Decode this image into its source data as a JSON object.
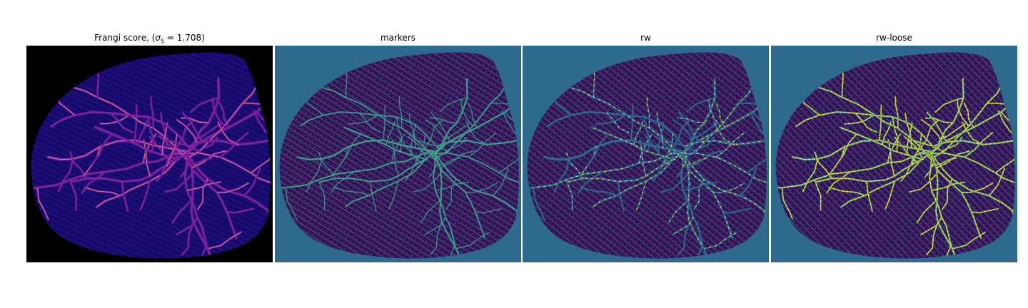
{
  "figure": {
    "panels": [
      {
        "title_prefix": "Frangi score, (",
        "title_sigma": "σ",
        "title_sub": "5",
        "title_suffix": " = 1.708)",
        "colors": {
          "background": "#000000",
          "tissue": "#150a6a",
          "vessel": "#7a1f9e",
          "vessel_hot": "#f0907a"
        }
      },
      {
        "title": "markers",
        "colors": {
          "background": "#2e6a8e",
          "tissue": "#3b0f55",
          "vessel": "#3e9b8a"
        }
      },
      {
        "title": "rw",
        "colors": {
          "background": "#2e6a8e",
          "tissue": "#3b0f55",
          "vessel": "#2e6a8e",
          "highlight": "#fde725"
        }
      },
      {
        "title": "rw-loose",
        "colors": {
          "background": "#2e6a8e",
          "tissue": "#3b0f55",
          "vessel": "#2e6a8e",
          "highlight": "#d6e62a"
        }
      }
    ]
  }
}
